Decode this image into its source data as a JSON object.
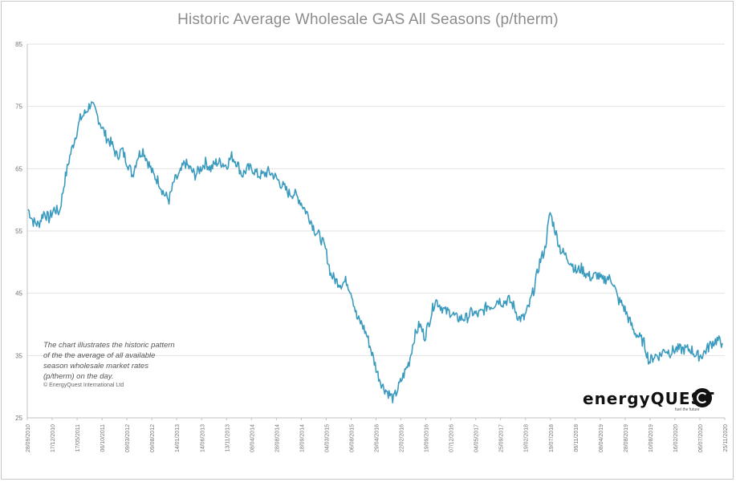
{
  "chart_data": {
    "type": "line",
    "title": "Historic Average Wholesale GAS All Seasons (p/therm)",
    "xlabel": "",
    "ylabel": "",
    "ylim": [
      25,
      85
    ],
    "yticks": [
      25,
      35,
      45,
      55,
      65,
      75,
      85
    ],
    "grid": true,
    "x_tick_labels": [
      "28/09/2010",
      "17/12/2010",
      "17/05/2011",
      "06/10/2011",
      "09/03/2012",
      "09/08/2012",
      "14/01/2013",
      "14/06/2013",
      "13/11/2013",
      "08/04/2014",
      "28/08/2014",
      "18/09/2014",
      "04/03/2015",
      "06/08/2015",
      "29/04/2016",
      "22/02/2016",
      "19/09/2016",
      "07/12/2016",
      "04/05/2017",
      "25/09/2017",
      "19/02/2018",
      "19/07/2018",
      "06/11/2018",
      "08/04/2019",
      "28/08/2019",
      "10/08/2019",
      "16/02/2020",
      "06/07/2020",
      "25/11/2020"
    ],
    "series": [
      {
        "color": "#3a9bbf",
        "values": [
          58.5,
          56.5,
          56,
          58,
          57,
          58.5,
          58,
          63,
          67,
          70,
          73,
          74,
          75.5,
          74,
          72,
          70,
          69,
          67,
          68,
          66,
          64,
          67,
          68,
          66,
          64,
          63,
          61,
          60,
          63,
          64,
          66,
          65,
          64,
          65,
          66,
          65,
          66,
          66,
          65.5,
          67,
          66,
          64,
          65,
          65,
          64,
          64,
          64.5,
          64,
          63,
          62,
          61,
          61,
          60,
          58.5,
          57,
          55,
          54,
          52,
          48,
          47,
          46.5,
          47,
          45,
          41,
          40,
          38,
          35,
          32,
          30,
          29,
          28,
          30,
          32,
          34,
          38,
          40,
          38,
          41,
          44,
          43,
          42,
          42,
          41,
          41,
          41,
          42,
          41.5,
          42,
          43,
          43,
          44,
          43.5,
          44,
          43,
          41,
          41,
          43,
          46,
          50,
          52,
          58,
          55,
          52,
          51,
          50,
          48.5,
          49,
          48,
          47.5,
          48,
          47,
          47.5,
          47,
          44,
          43,
          41,
          39,
          38,
          37,
          34,
          35,
          35,
          36,
          35.5,
          36,
          36,
          36,
          36,
          35,
          35,
          36,
          37,
          37.5,
          37
        ]
      }
    ],
    "annotation": [
      "The chart illustrates the historic pattern",
      "of the the average of all available",
      "season wholesale market rates",
      "(p/therm) on the day.",
      "© EnergyQuest International Ltd"
    ]
  },
  "logo": {
    "word": "energyQUEST",
    "tagline": "fuel the future"
  }
}
